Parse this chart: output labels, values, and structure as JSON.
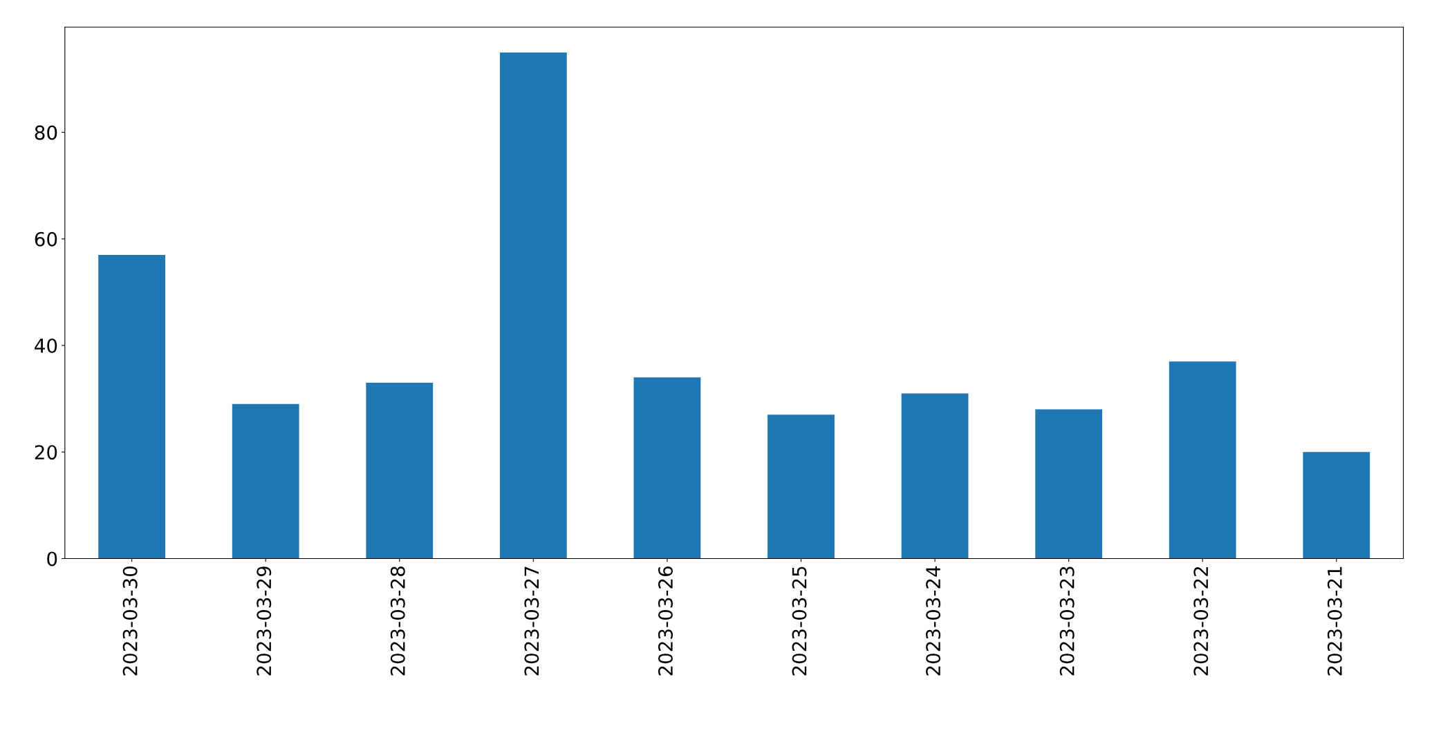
{
  "chart_data": {
    "type": "bar",
    "categories": [
      "2023-03-30",
      "2023-03-29",
      "2023-03-28",
      "2023-03-27",
      "2023-03-26",
      "2023-03-25",
      "2023-03-24",
      "2023-03-23",
      "2023-03-22",
      "2023-03-21"
    ],
    "values": [
      57,
      29,
      33,
      95,
      34,
      27,
      31,
      28,
      37,
      20
    ],
    "color": "#1f77b4",
    "ylim": [
      0,
      99.75
    ],
    "yticks": [
      0,
      20,
      40,
      60,
      80
    ],
    "grid": false,
    "legend": false
  }
}
